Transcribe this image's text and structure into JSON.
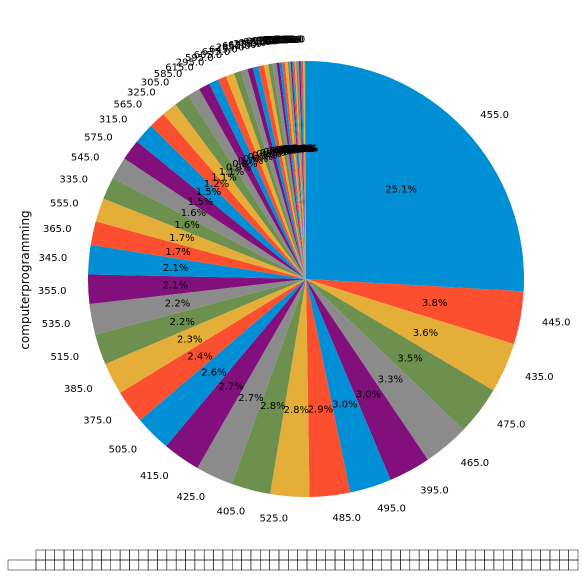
{
  "chart_data": {
    "type": "pie",
    "ylabel": "computerprogramming",
    "start_angle_deg": 90,
    "direction": "clockwise",
    "slices": [
      {
        "label": "455.0",
        "pct": 25.1,
        "pct_label": "25.1%"
      },
      {
        "label": "445.0",
        "pct": 3.8,
        "pct_label": "3.8%"
      },
      {
        "label": "435.0",
        "pct": 3.6,
        "pct_label": "3.6%"
      },
      {
        "label": "475.0",
        "pct": 3.5,
        "pct_label": "3.5%"
      },
      {
        "label": "465.0",
        "pct": 3.3,
        "pct_label": "3.3%"
      },
      {
        "label": "395.0",
        "pct": 3.0,
        "pct_label": "3.0%"
      },
      {
        "label": "495.0",
        "pct": 3.0,
        "pct_label": "3.0%"
      },
      {
        "label": "485.0",
        "pct": 2.9,
        "pct_label": "2.9%"
      },
      {
        "label": "525.0",
        "pct": 2.8,
        "pct_label": "2.8%"
      },
      {
        "label": "405.0",
        "pct": 2.8,
        "pct_label": "2.8%"
      },
      {
        "label": "425.0",
        "pct": 2.7,
        "pct_label": "2.7%"
      },
      {
        "label": "415.0",
        "pct": 2.7,
        "pct_label": "2.7%"
      },
      {
        "label": "505.0",
        "pct": 2.6,
        "pct_label": "2.6%"
      },
      {
        "label": "375.0",
        "pct": 2.4,
        "pct_label": "2.4%"
      },
      {
        "label": "385.0",
        "pct": 2.3,
        "pct_label": "2.3%"
      },
      {
        "label": "515.0",
        "pct": 2.2,
        "pct_label": "2.2%"
      },
      {
        "label": "535.0",
        "pct": 2.2,
        "pct_label": "2.2%"
      },
      {
        "label": "355.0",
        "pct": 2.1,
        "pct_label": "2.1%"
      },
      {
        "label": "345.0",
        "pct": 2.1,
        "pct_label": "2.1%"
      },
      {
        "label": "365.0",
        "pct": 1.7,
        "pct_label": "1.7%"
      },
      {
        "label": "555.0",
        "pct": 1.7,
        "pct_label": "1.7%"
      },
      {
        "label": "335.0",
        "pct": 1.6,
        "pct_label": "1.6%"
      },
      {
        "label": "545.0",
        "pct": 1.6,
        "pct_label": "1.6%"
      },
      {
        "label": "575.0",
        "pct": 1.5,
        "pct_label": "1.5%"
      },
      {
        "label": "315.0",
        "pct": 1.5,
        "pct_label": "1.5%"
      },
      {
        "label": "565.0",
        "pct": 1.2,
        "pct_label": "1.2%"
      },
      {
        "label": "325.0",
        "pct": 1.1,
        "pct_label": "1.1%"
      },
      {
        "label": "305.0",
        "pct": 1.1,
        "pct_label": "1.1%"
      },
      {
        "label": "585.0",
        "pct": 0.9,
        "pct_label": "0.9%"
      },
      {
        "label": "615.0",
        "pct": 0.8,
        "pct_label": "0.8%"
      },
      {
        "label": "295.0",
        "pct": 0.7,
        "pct_label": "0.7%"
      },
      {
        "label": "595.0",
        "pct": 0.6,
        "pct_label": "0.6%"
      },
      {
        "label": "605.0",
        "pct": 0.6,
        "pct_label": "0.6%"
      },
      {
        "label": "635.0",
        "pct": 0.5,
        "pct_label": "0.5%"
      },
      {
        "label": "645.0",
        "pct": 0.5,
        "pct_label": "0.5%"
      },
      {
        "label": "285.0",
        "pct": 0.4,
        "pct_label": "0.4%"
      },
      {
        "label": "655.0",
        "pct": 0.4,
        "pct_label": "0.4%"
      },
      {
        "label": "625.0",
        "pct": 0.4,
        "pct_label": "0.4%"
      },
      {
        "label": "275.0",
        "pct": 0.3,
        "pct_label": "0.3%"
      },
      {
        "label": "665.0",
        "pct": 0.3,
        "pct_label": "0.3%"
      },
      {
        "label": "675.0",
        "pct": 0.3,
        "pct_label": "0.3%"
      },
      {
        "label": "265.0",
        "pct": 0.2,
        "pct_label": "0.2%"
      },
      {
        "label": "685.0",
        "pct": 0.2,
        "pct_label": "0.2%"
      },
      {
        "label": "255.0",
        "pct": 0.2,
        "pct_label": "0.2%"
      },
      {
        "label": "695.0",
        "pct": 0.2,
        "pct_label": "0.2%"
      },
      {
        "label": "705.0",
        "pct": 0.1,
        "pct_label": "0.1%"
      },
      {
        "label": "245.0",
        "pct": 0.1,
        "pct_label": "0.1%"
      },
      {
        "label": "715.0",
        "pct": 0.1,
        "pct_label": "0.1%"
      },
      {
        "label": "235.0",
        "pct": 0.1,
        "pct_label": "0.1%"
      },
      {
        "label": "725.0",
        "pct": 0.1,
        "pct_label": "0.1%"
      },
      {
        "label": "225.0",
        "pct": 0.1,
        "pct_label": "0.1%"
      },
      {
        "label": "735.0",
        "pct": 0.1,
        "pct_label": "0.1%"
      },
      {
        "label": "745.0",
        "pct": 0.1,
        "pct_label": "0.1%"
      },
      {
        "label": "215.0",
        "pct": 0.1,
        "pct_label": "0.1%"
      },
      {
        "label": "755.0",
        "pct": 0.1,
        "pct_label": "0.1%"
      },
      {
        "label": "765.0",
        "pct": 0.1,
        "pct_label": "0.1%"
      },
      {
        "label": "775.0",
        "pct": 0.1,
        "pct_label": "0.1%"
      },
      {
        "label": "205.0",
        "pct": 0.1,
        "pct_label": "0.1%"
      }
    ],
    "colors": [
      "#008fd5",
      "#fc4f30",
      "#e5ae38",
      "#6d904f",
      "#8b8b8b",
      "#810f7c"
    ],
    "table": {
      "rows": 2,
      "columns": 58
    }
  }
}
